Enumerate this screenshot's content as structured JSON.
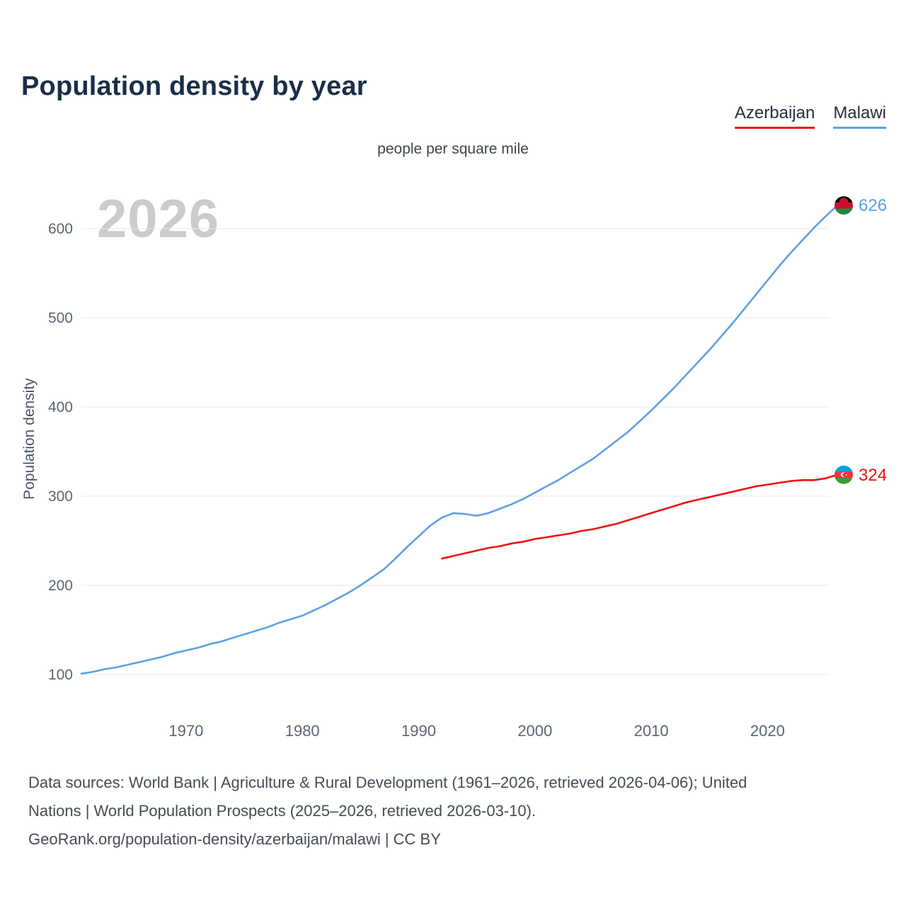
{
  "page": {
    "title": "Population density by year",
    "subtitle": "people per square mile",
    "watermark": "2026",
    "y_axis_label": "Population density"
  },
  "legend": [
    {
      "label": "Azerbaijan",
      "color": "#ec130e"
    },
    {
      "label": "Malawi",
      "color": "#5da1e6"
    }
  ],
  "footer": {
    "line1": "Data sources: World Bank | Agriculture & Rural Development (1961–2026, retrieved 2026-04-06); United",
    "line2": "Nations | World Population Prospects (2025–2026, retrieved 2026-03-10).",
    "line3": "GeoRank.org/population-density/azerbaijan/malawi | CC BY"
  },
  "chart_data": {
    "type": "line",
    "title": "Population density by year",
    "subtitle": "people per square mile",
    "xlabel": "",
    "ylabel": "Population density",
    "watermark": "2026",
    "grid": "horizontal",
    "legend_position": "top-right",
    "xlim": [
      1961,
      2026
    ],
    "ylim": [
      100,
      600
    ],
    "x_ticks": [
      1970,
      1980,
      1990,
      2000,
      2010,
      2020
    ],
    "y_ticks": [
      100,
      200,
      300,
      400,
      500,
      600
    ],
    "series": [
      {
        "name": "Malawi",
        "color": "#5da1e6",
        "flag": "malawi",
        "start_year": 1961,
        "end_year": 2026,
        "end_value_label": "626",
        "values": [
          101,
          103,
          106,
          108,
          111,
          114,
          117,
          120,
          124,
          127,
          130,
          134,
          137,
          141,
          145,
          149,
          153,
          158,
          162,
          166,
          172,
          178,
          185,
          192,
          200,
          209,
          218,
          230,
          243,
          255,
          267,
          276,
          281,
          280,
          278,
          281,
          286,
          291,
          297,
          304,
          311,
          318,
          326,
          334,
          342,
          352,
          362,
          372,
          384,
          396,
          409,
          422,
          436,
          450,
          464,
          479,
          494,
          510,
          526,
          542,
          558,
          573,
          587,
          601,
          614,
          626
        ]
      },
      {
        "name": "Azerbaijan",
        "color": "#ec130e",
        "flag": "azerbaijan",
        "start_year": 1992,
        "end_year": 2026,
        "end_value_label": "324",
        "values": [
          230,
          233,
          236,
          239,
          242,
          244,
          247,
          249,
          252,
          254,
          256,
          258,
          261,
          263,
          266,
          269,
          273,
          277,
          281,
          285,
          289,
          293,
          296,
          299,
          302,
          305,
          308,
          311,
          313,
          315,
          317,
          318,
          318,
          320,
          324
        ]
      }
    ],
    "flags": {
      "malawi": {
        "stripes": [
          "#000000",
          "#c8102e",
          "#21873f"
        ],
        "emblem": "red-rising-sun"
      },
      "azerbaijan": {
        "stripes": [
          "#00a3dd",
          "#ef3340",
          "#3f9c35"
        ],
        "emblem": "white-crescent"
      }
    }
  }
}
